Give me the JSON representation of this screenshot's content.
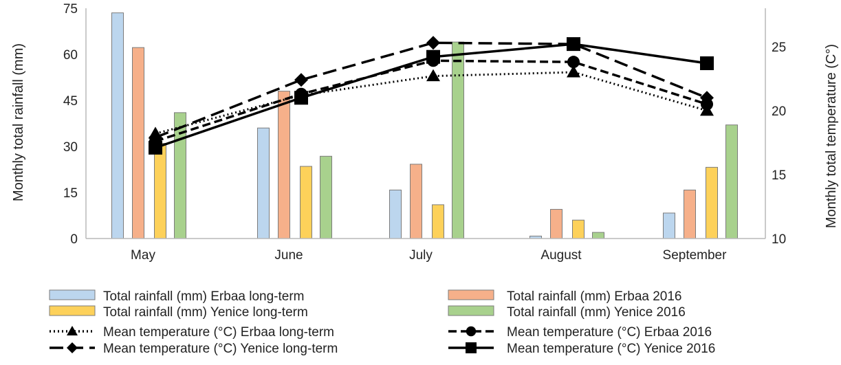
{
  "chart_data": {
    "type": "bar",
    "categories": [
      "May",
      "June",
      "July",
      "August",
      "September"
    ],
    "ylabel": "Monthly total rainfall (mm)",
    "y2label": "Monthly total temperature (C°)",
    "ylim": [
      0,
      75
    ],
    "yticks": [
      "0",
      "15",
      "30",
      "45",
      "60",
      "75"
    ],
    "y2lim": [
      10,
      28
    ],
    "y2ticks": [
      "10",
      "15",
      "20",
      "25"
    ],
    "grid": false,
    "legend_position": "bottom",
    "bar_series": [
      {
        "name": "Total rainfall (mm) Erbaa long-term",
        "color": "#bcd6ee",
        "values": [
          73.5,
          36,
          15.8,
          0.8,
          8.3
        ]
      },
      {
        "name": "Total rainfall (mm) Erbaa 2016",
        "color": "#f6b08a",
        "values": [
          62.2,
          48,
          24.2,
          9.5,
          15.8
        ]
      },
      {
        "name": "Total rainfall (mm) Yenice long-term",
        "color": "#fdd15a",
        "values": [
          31,
          23.5,
          11,
          6,
          23.2
        ]
      },
      {
        "name": "Total rainfall (mm) Yenice 2016",
        "color": "#a8d18d",
        "values": [
          41,
          26.8,
          64,
          2,
          37
        ]
      }
    ],
    "line_series": [
      {
        "name": "Mean temperature (°C) Erbaa long-term",
        "dash": "dotted",
        "marker": "triangle",
        "values": [
          18.2,
          21.2,
          22.7,
          23.0,
          20.0
        ]
      },
      {
        "name": "Mean temperature (°C) Erbaa 2016",
        "dash": "dashed",
        "marker": "circle",
        "values": [
          17.6,
          21.3,
          23.9,
          23.8,
          20.5
        ]
      },
      {
        "name": "Mean temperature (°C) Yenice long-term",
        "dash": "longdash",
        "marker": "diamond",
        "values": [
          17.9,
          22.4,
          25.3,
          25.2,
          21.0
        ]
      },
      {
        "name": "Mean temperature (°C) Yenice 2016",
        "dash": "solid",
        "marker": "square",
        "values": [
          17.1,
          21.0,
          24.2,
          25.2,
          23.7
        ]
      }
    ]
  }
}
